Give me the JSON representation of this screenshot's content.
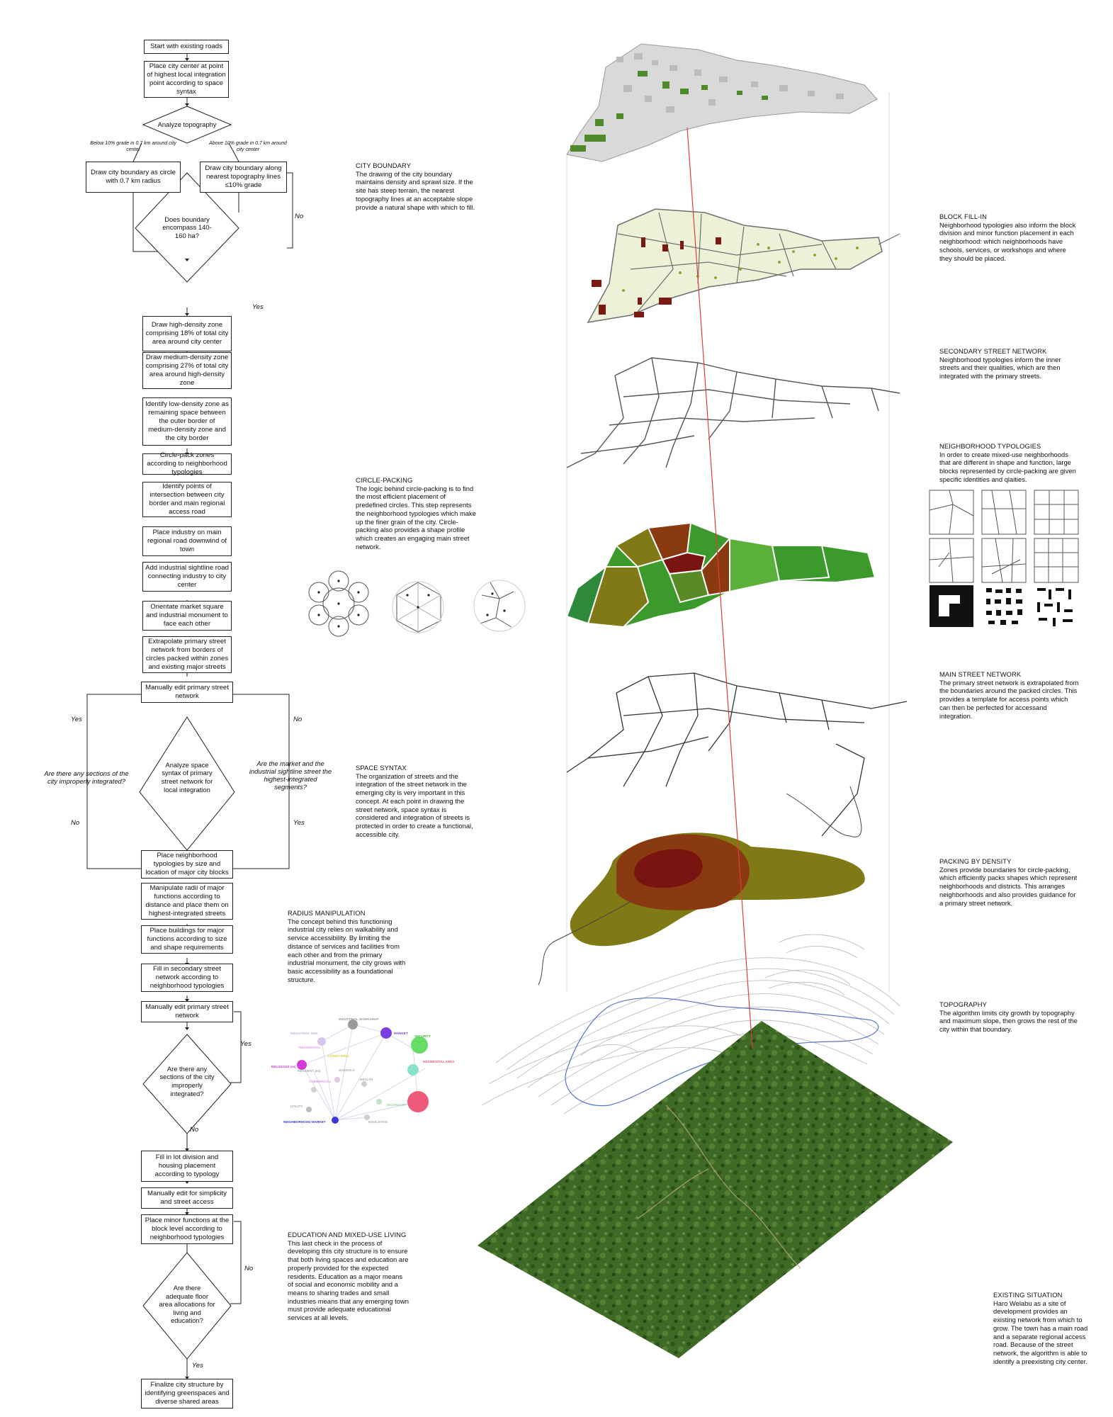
{
  "flowchart": {
    "boxes": [
      "Start with existing roads",
      "Place city center at point of highest local integration point according to space syntax",
      "Draw city boundary as circle with 0.7 km radius",
      "Draw city boundary along nearest topography lines ≤10% grade",
      "Draw high-density zone comprising 18% of total city area around city center",
      "Draw medium-density zone comprising 27% of total city area around high-density zone",
      "Identify low-density zone as remaining space between the outer border of medium-density zone and the city border",
      "Circle-pack zones according to neighborhood typologies",
      "Identify points of intersection between city border and main regional access road",
      "Place industry on main regional road downwind of town",
      "Add industrial sightline road connecting industry to city center",
      "Orientate market square and industrial monument to face each other",
      "Extrapolate primary street network from borders of circles packed within zones and existing major streets",
      "Manually edit primary street network",
      "Place neighborhood typologies by size and location of major city blocks",
      "Manipulate radii of major functions according to distance and place them on highest-integrated streets",
      "Place buildings for major functions according to size and shape requirements",
      "Fill in secondary street network according to neighborhood typologies",
      "Manually edit primary street network",
      "Fill in lot division and housing placement according to typology",
      "Manually edit for simplicity and street access",
      "Place minor functions at the block level according to neighborhood typologies",
      "Finalize city structure by identifying greenspaces and diverse shared areas"
    ],
    "diamonds": [
      "Analyze topography",
      "Does boundary encompass 140-160 ha?",
      "Analyze space syntax of primary street network for local integration",
      "Are there any sections of the city improperly integrated?",
      "Are there adequate floor area allocations for living and education?"
    ],
    "conditions": {
      "below": "Below 10% grade in 0.7 km around city center",
      "above": "Above 10% grade in 0.7 km around city center"
    },
    "labels": {
      "no": "No",
      "yes": "Yes",
      "q_left": "Are there any sections of the city improperly integrated?",
      "q_right": "Are the market and the industrial sightline street the highest-integrated segments?"
    }
  },
  "notes": {
    "city_boundary": {
      "title": "CITY BOUNDARY",
      "body": "The drawing of the city boundary maintains density and sprawl size. If the site has steep terrain, the nearest topography lines at an acceptable slope provide a natural shape with which to fill."
    },
    "circle_packing": {
      "title": "CIRCLE-PACKING",
      "body": "The logic behind circle-packing is to find the most efficient placement of predefined circles. This step represents the neighborhood typologies which make up the finer grain of the city. Circle-packing also provides a shape profile which creates an engaging main street network."
    },
    "space_syntax": {
      "title": "SPACE SYNTAX",
      "body": "The organization of streets and the integration of the street network in the emerging city is very important in this concept. At each point in drawing the street network, space syntax is considered and integration of streets is protected in order to create a functional, accessible city."
    },
    "radius": {
      "title": "RADIUS MANIPULATION",
      "body": "The concept behind this functioning industrial city relies on walkability and service accessibility. By limiting the distance of services and facilities from each other and from the primary industrial monument, the city grows with basic accessibility as a foundational structure."
    },
    "education": {
      "title": "EDUCATION AND MIXED-USE LIVING",
      "body": "This last check in the process of developing this city structure is to ensure that both living spaces and education are properly provided for the expected residents. Education as a major means of social and economic mobility and a means to sharing trades and small industries means that any emerging town must provide adequate educational services at all levels."
    },
    "block_fill": {
      "title": "BLOCK FILL-IN",
      "body": "Neighborhood typologies also inform the block division and minor function placement in each neighborhood: which neighborhoods have schools, services, or workshops and where they should be placed."
    },
    "secondary": {
      "title": "SECONDARY STREET NETWORK",
      "body": "Neighborhood typologies inform the inner streets and their qualities, which are then integrated with the primary streets."
    },
    "typologies": {
      "title": "NEIGHBORHOOD TYPOLOGIES",
      "body": "In order to create mixed-use neighborhoods that are different in shape and function, large blocks represented by circle-packing are given specific identities and qlaities."
    },
    "main_street": {
      "title": "MAIN STREET NETWORK",
      "body": "The primary street network is extrapolated from the boundaries around the packed circles. This provides a template for access points which can then be perfected for accessand integration."
    },
    "density": {
      "title": "PACKING BY DENSITY",
      "body": "Zones provide boundaries for circle-packing, which efficiently packs shapes which represent neighborhoods and districts. This arranges neighborhoods and also provides guidance for a primary street network."
    },
    "topography": {
      "title": "TOPOGRAPHY",
      "body": "The algorithm limits city growth by topography and maximum slope, then grows the rest of the city within that boundary."
    },
    "existing": {
      "title": "EXISTING SITUATION",
      "body": "Haro Welabu as a site of development provides an existing network from which to grow. The town has a main road and a separate regional access road. Because of the street network, the algorithm is able to identify a preexisting city center."
    }
  },
  "circle_labels": [
    "INDUSTRIAL WORKSHOP",
    "INDUSTRIAL NBS",
    "MARKET",
    "RESIDENTIAL AREA",
    "SECURITY",
    "STREET-BIND",
    "RESIDENTIAL",
    "RELIGIOUS (ex)",
    "COMMERCIAL",
    "HEALTH",
    "UTILITY",
    "SCHOOLS",
    "NEIGHBORHOOD MARKET",
    "EDUCATION",
    "SECONDARY",
    "RESIDENT (ex)"
  ],
  "colors": {
    "high_density": "#7a1410",
    "medium_density": "#8a3a10",
    "low_density": "#7f7a16",
    "green": "#3c9a2c",
    "axis_line": "#e23b3b"
  }
}
